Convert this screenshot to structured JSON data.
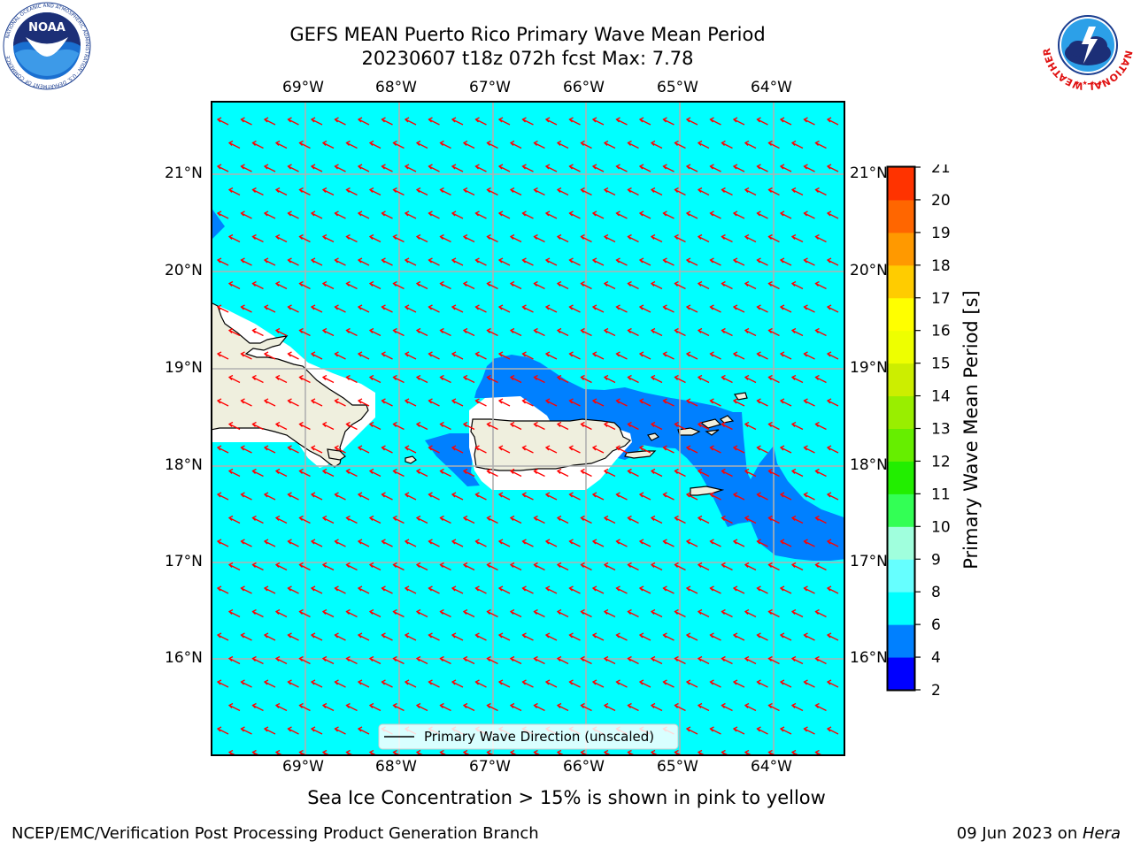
{
  "header": {
    "title_line1": "GEFS MEAN Puerto Rico Primary Wave Mean Period",
    "title_line2": "20230607 t18z 072h fcst   Max: 7.78"
  },
  "logos": {
    "left_org": "NOAA",
    "left_ring_text": "NATIONAL OCEANIC AND ATMOSPHERIC ADMINISTRATION · U.S. DEPARTMENT OF COMMERCE",
    "right_ring_text": "NATIONAL WEATHER SERVICE"
  },
  "map": {
    "lon_labels": [
      "69°W",
      "68°W",
      "67°W",
      "66°W",
      "65°W",
      "64°W"
    ],
    "lat_labels": [
      "21°N",
      "20°N",
      "19°N",
      "18°N",
      "17°N",
      "16°N"
    ],
    "legend_label": "Primary Wave Direction (unscaled)",
    "colors": {
      "ocean_fill": "#00ffff",
      "band_4_6": "#0080ff",
      "land": "#efefde",
      "arrow": "#ff0000",
      "grid": "#b0b0b0"
    }
  },
  "colorbar": {
    "label": "Primary Wave Mean Period [s]",
    "ticks": [
      "2",
      "4",
      "6",
      "8",
      "9",
      "10",
      "11",
      "12",
      "13",
      "14",
      "15",
      "16",
      "17",
      "18",
      "19",
      "20",
      "21"
    ],
    "colors": [
      "#0000ff",
      "#0080ff",
      "#00ffff",
      "#66ffff",
      "#a0ffdd",
      "#33ff55",
      "#22ee00",
      "#66ee00",
      "#99ee00",
      "#ccee00",
      "#eeff00",
      "#ffff00",
      "#ffcc00",
      "#ff9900",
      "#ff6600",
      "#ff3300",
      "#ff0000"
    ]
  },
  "sea_ice_note": "Sea Ice Concentration > 15% is shown in pink to yellow",
  "footer": {
    "left": "NCEP/EMC/Verification Post Processing Product Generation Branch",
    "right_date": "09 Jun 2023 on ",
    "right_host": "Hera"
  }
}
